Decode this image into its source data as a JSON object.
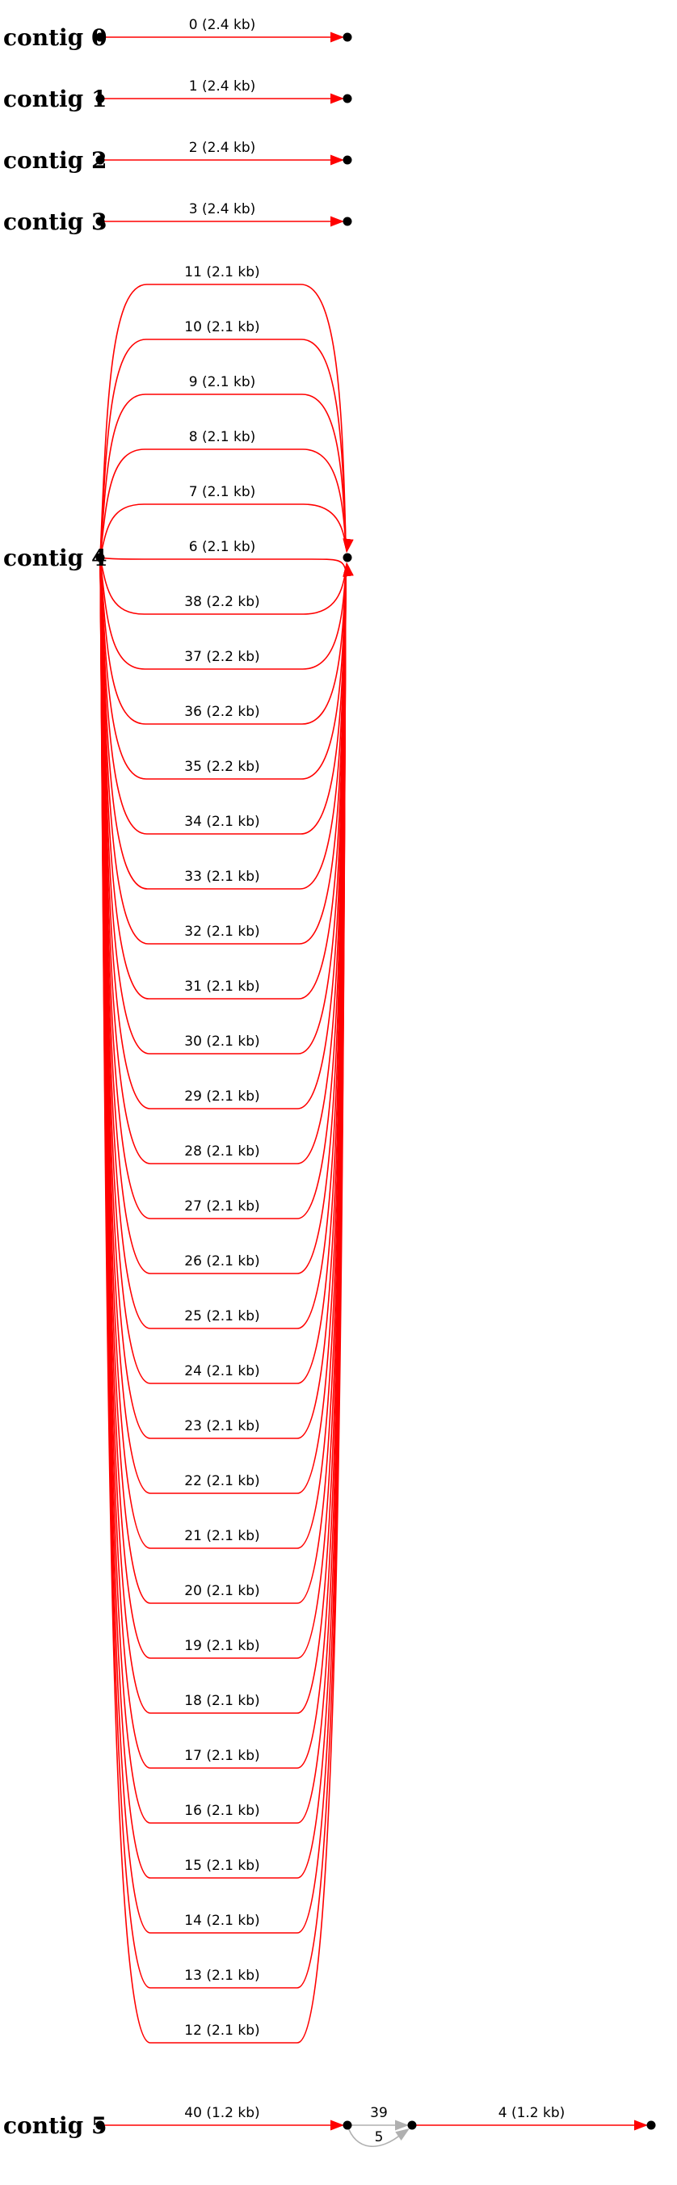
{
  "graph": {
    "line_color": "#ff0000",
    "secondary_color": "#b0b0b0",
    "contigs": [
      {
        "label": "contig 0",
        "edges": [
          {
            "label": "0 (2.4 kb)"
          }
        ]
      },
      {
        "label": "contig 1",
        "edges": [
          {
            "label": "1 (2.4 kb)"
          }
        ]
      },
      {
        "label": "contig 2",
        "edges": [
          {
            "label": "2 (2.4 kb)"
          }
        ]
      },
      {
        "label": "contig 3",
        "edges": [
          {
            "label": "3 (2.4 kb)"
          }
        ]
      },
      {
        "label": "contig 4",
        "edges": [
          {
            "label": "11 (2.1 kb)"
          },
          {
            "label": "10 (2.1 kb)"
          },
          {
            "label": "9 (2.1 kb)"
          },
          {
            "label": "8 (2.1 kb)"
          },
          {
            "label": "7 (2.1 kb)"
          },
          {
            "label": "6 (2.1 kb)"
          },
          {
            "label": "38 (2.2 kb)"
          },
          {
            "label": "37 (2.2 kb)"
          },
          {
            "label": "36 (2.2 kb)"
          },
          {
            "label": "35 (2.2 kb)"
          },
          {
            "label": "34 (2.1 kb)"
          },
          {
            "label": "33 (2.1 kb)"
          },
          {
            "label": "32 (2.1 kb)"
          },
          {
            "label": "31 (2.1 kb)"
          },
          {
            "label": "30 (2.1 kb)"
          },
          {
            "label": "29 (2.1 kb)"
          },
          {
            "label": "28 (2.1 kb)"
          },
          {
            "label": "27 (2.1 kb)"
          },
          {
            "label": "26 (2.1 kb)"
          },
          {
            "label": "25 (2.1 kb)"
          },
          {
            "label": "24 (2.1 kb)"
          },
          {
            "label": "23 (2.1 kb)"
          },
          {
            "label": "22 (2.1 kb)"
          },
          {
            "label": "21 (2.1 kb)"
          },
          {
            "label": "20 (2.1 kb)"
          },
          {
            "label": "19 (2.1 kb)"
          },
          {
            "label": "18 (2.1 kb)"
          },
          {
            "label": "17 (2.1 kb)"
          },
          {
            "label": "16 (2.1 kb)"
          },
          {
            "label": "15 (2.1 kb)"
          },
          {
            "label": "14 (2.1 kb)"
          },
          {
            "label": "13 (2.1 kb)"
          },
          {
            "label": "12 (2.1 kb)"
          }
        ]
      },
      {
        "label": "contig 5",
        "edges": [
          {
            "label": "40 (1.2 kb)"
          },
          {
            "label": "39"
          },
          {
            "label": "5"
          },
          {
            "label": "4 (1.2 kb)"
          }
        ]
      }
    ]
  }
}
